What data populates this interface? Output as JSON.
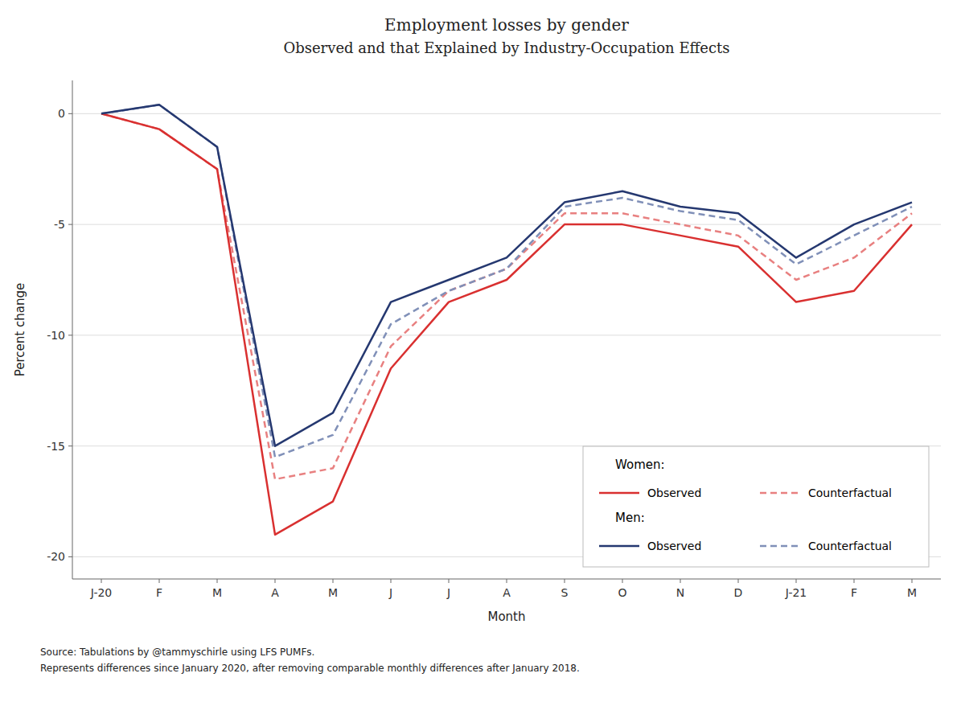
{
  "chart_data": {
    "type": "line",
    "title": "Employment losses by gender",
    "subtitle": "Observed and that Explained by Industry-Occupation Effects",
    "x_label": "Month",
    "y_label": "Percent change",
    "annotations": [
      "Source: Tabulations by @tammyschirle using LFS PUMFs.",
      "Represents differences since January 2020, after removing comparable monthly differences after January 2018."
    ],
    "categories": [
      "J-20",
      "F",
      "M",
      "A",
      "M",
      "J",
      "J",
      "A",
      "S",
      "O",
      "N",
      "D",
      "J-21",
      "F",
      "M"
    ],
    "series": [
      {
        "name": "Observed",
        "group": "Women:",
        "color": "#d93030",
        "line_style": "solid",
        "values": [
          0.0,
          -0.7,
          -2.5,
          -19.0,
          -17.5,
          -11.5,
          -8.5,
          -7.5,
          -5.0,
          -5.0,
          -5.5,
          -6.0,
          -8.5,
          -8.0,
          -5.0
        ]
      },
      {
        "name": "Counterfactual",
        "group": "Women:",
        "color": "#e88080",
        "line_style": "dashed",
        "values": [
          0.0,
          -0.7,
          -2.5,
          -16.5,
          -16.0,
          -10.5,
          -8.0,
          -7.0,
          -4.5,
          -4.5,
          -5.0,
          -5.5,
          -7.5,
          -6.5,
          -4.5
        ]
      },
      {
        "name": "Observed",
        "group": "Men:",
        "color": "#253870",
        "line_style": "solid",
        "values": [
          0.0,
          0.4,
          -1.5,
          -15.0,
          -13.5,
          -8.5,
          -7.5,
          -6.5,
          -4.0,
          -3.5,
          -4.2,
          -4.5,
          -6.5,
          -5.0,
          -4.0
        ]
      },
      {
        "name": "Counterfactual",
        "group": "Men:",
        "color": "#8090b8",
        "line_style": "dashed",
        "values": [
          0.0,
          0.4,
          -1.5,
          -15.5,
          -14.5,
          -9.5,
          -8.0,
          -7.0,
          -4.2,
          -3.8,
          -4.4,
          -4.8,
          -6.8,
          -5.5,
          -4.2
        ]
      }
    ],
    "ylim": [
      -21,
      1.5
    ],
    "yticks": [
      0,
      -5,
      -10,
      -15,
      -20
    ],
    "grid": true,
    "legend": "lower right"
  }
}
